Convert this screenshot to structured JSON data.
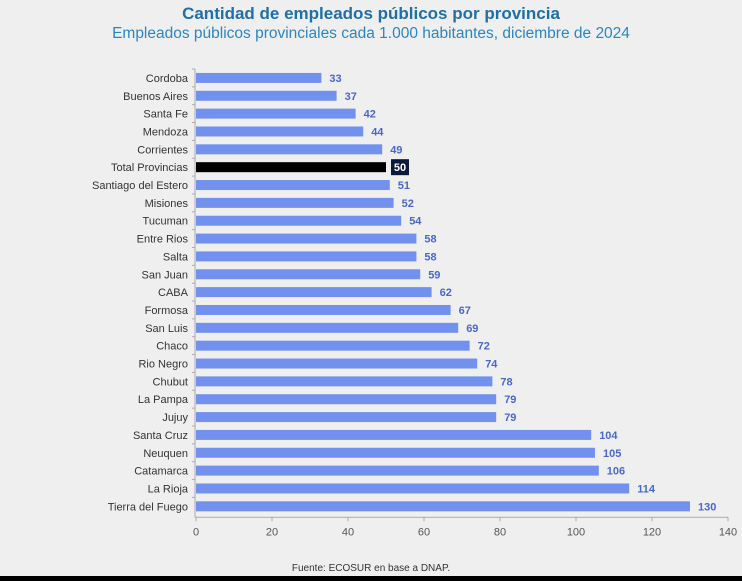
{
  "colors": {
    "bar": "#7291ee",
    "highlight": "#000000",
    "label": "#4a67cf",
    "title": "#1f6fa8",
    "subtitle": "#2a86c4"
  },
  "source": "Fuente: ECOSUR en base a DNAP.",
  "chart_data": {
    "type": "bar",
    "orientation": "horizontal",
    "title": "Cantidad de empleados públicos por provincia",
    "subtitle": "Empleados públicos provinciales cada 1.000 habitantes, diciembre de 2024",
    "xlabel": "",
    "ylabel": "",
    "xlim": [
      0,
      140
    ],
    "xticks": [
      "0",
      "20",
      "40",
      "60",
      "80",
      "100",
      "120",
      "140"
    ],
    "grid": false,
    "highlight": "Total Provincias",
    "categories": [
      "Cordoba",
      "Buenos Aires",
      "Santa Fe",
      "Mendoza",
      "Corrientes",
      "Total Provincias",
      "Santiago del Estero",
      "Misiones",
      "Tucuman",
      "Entre Rios",
      "Salta",
      "San Juan",
      "CABA",
      "Formosa",
      "San Luis",
      "Chaco",
      "Rio Negro",
      "Chubut",
      "La Pampa",
      "Jujuy",
      "Santa Cruz",
      "Neuquen",
      "Catamarca",
      "La Rioja",
      "Tierra del Fuego"
    ],
    "values": [
      33,
      37,
      42,
      44,
      49,
      50,
      51,
      52,
      54,
      58,
      58,
      59,
      62,
      67,
      69,
      72,
      74,
      78,
      79,
      79,
      104,
      105,
      106,
      114,
      130
    ]
  }
}
